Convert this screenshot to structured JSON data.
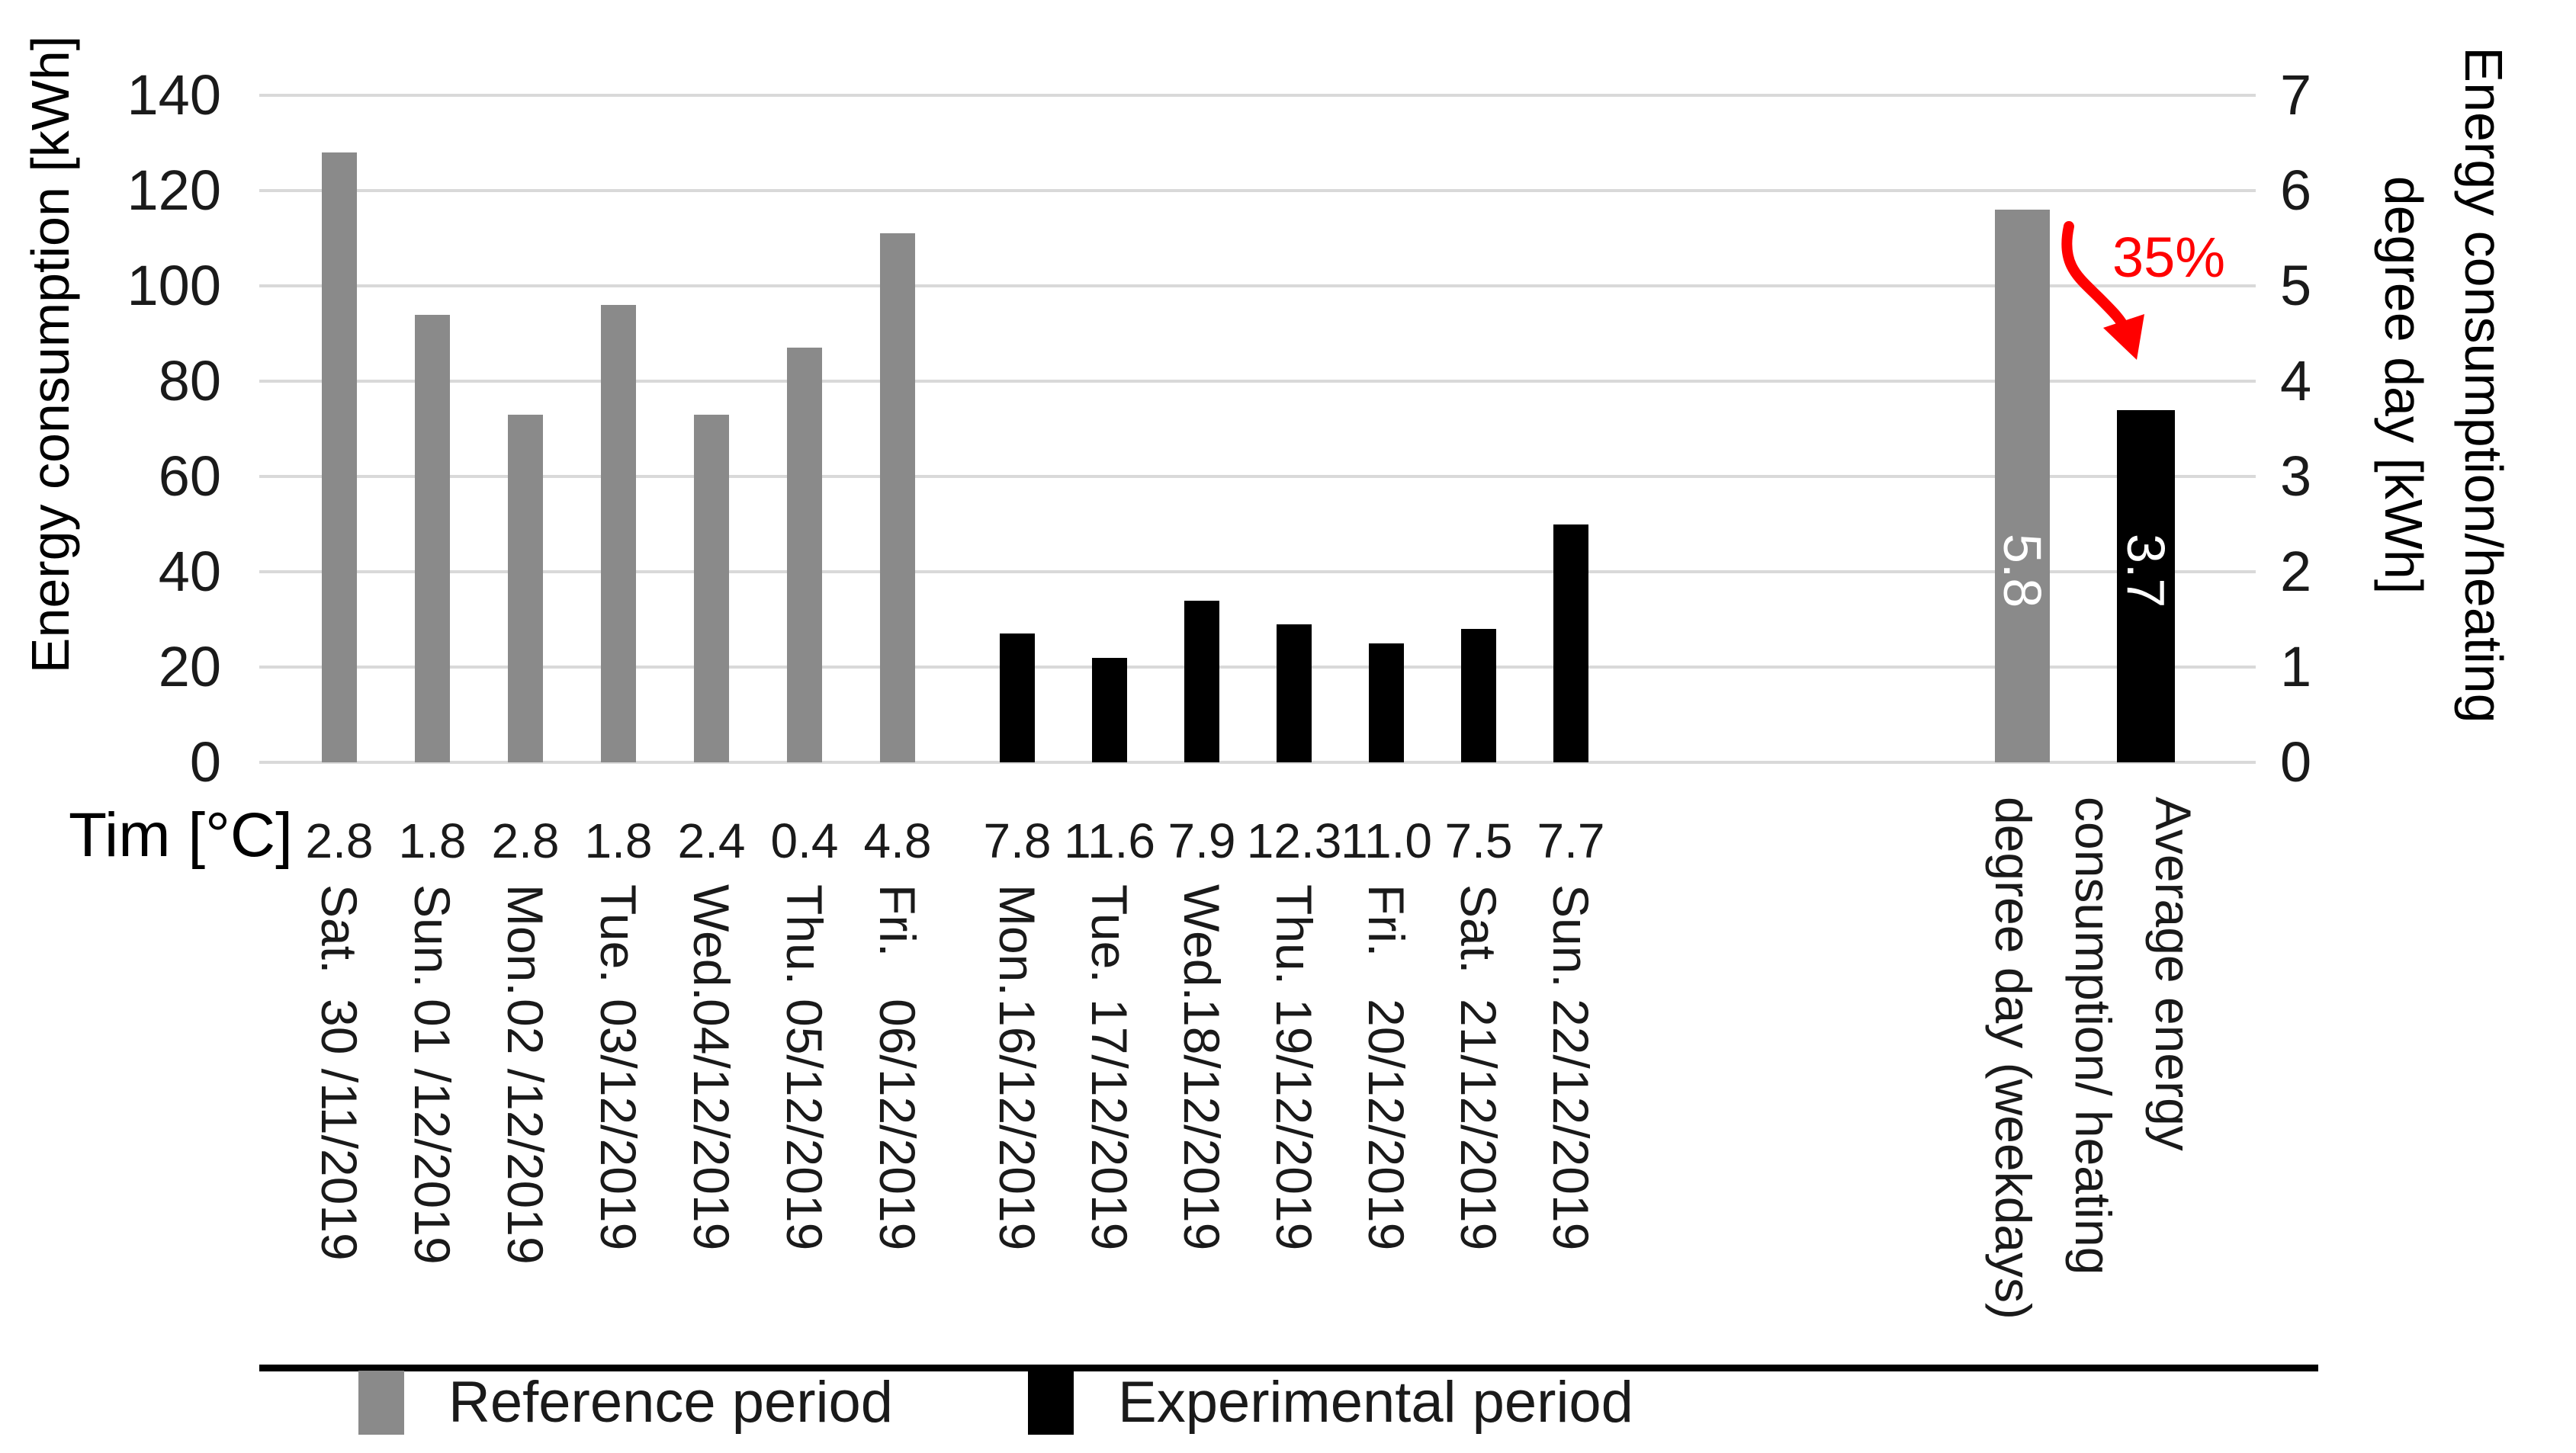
{
  "chart_data": {
    "type": "bar",
    "title": "",
    "left_axis": {
      "label": "Energy consumption [kWh]",
      "min": 0,
      "max": 140,
      "step": 20
    },
    "right_axis": {
      "label_line1": "Energy consumption/heating",
      "label_line2": "degree day [kWh]",
      "min": 0,
      "max": 7,
      "step": 1
    },
    "temp_row_label": "Tim [°C]",
    "grid": "horizontal-on",
    "series": [
      {
        "name": "Reference period",
        "color": "#8a8a8a",
        "days": [
          {
            "day": "Sat.",
            "date": "30 /11/2019",
            "temp": "2.8",
            "value": 128
          },
          {
            "day": "Sun.",
            "date": "01 /12/2019",
            "temp": "1.8",
            "value": 94
          },
          {
            "day": "Mon.",
            "date": "02 /12/2019",
            "temp": "2.8",
            "value": 73
          },
          {
            "day": "Tue.",
            "date": "03/12/2019",
            "temp": "1.8",
            "value": 96
          },
          {
            "day": "Wed.",
            "date": "04/12/2019",
            "temp": "2.4",
            "value": 73
          },
          {
            "day": "Thu.",
            "date": "05/12/2019",
            "temp": "0.4",
            "value": 87
          },
          {
            "day": "Fri.",
            "date": "06/12/2019",
            "temp": "4.8",
            "value": 111
          }
        ]
      },
      {
        "name": "Experimental period",
        "color": "#000000",
        "days": [
          {
            "day": "Mon.",
            "date": "16/12/2019",
            "temp": "7.8",
            "value": 27
          },
          {
            "day": "Tue.",
            "date": "17/12/2019",
            "temp": "11.6",
            "value": 22
          },
          {
            "day": "Wed.",
            "date": "18/12/2019",
            "temp": "7.9",
            "value": 34
          },
          {
            "day": "Thu.",
            "date": "19/12/2019",
            "temp": "12.3",
            "value": 29
          },
          {
            "day": "Fri.",
            "date": "20/12/2019",
            "temp": "11.0",
            "value": 25
          },
          {
            "day": "Sat.",
            "date": "21/12/2019",
            "temp": "7.5",
            "value": 28
          },
          {
            "day": "Sun.",
            "date": "22/12/2019",
            "temp": "7.7",
            "value": 50
          }
        ]
      }
    ],
    "summary": {
      "label_lines": [
        "Average energy",
        "consumption/ heating",
        "degree day (weekdays)"
      ],
      "bars": [
        {
          "name": "Reference period",
          "value": 5.8,
          "display": "5.8",
          "color": "#8a8a8a"
        },
        {
          "name": "Experimental period",
          "value": 3.7,
          "display": "3.7",
          "color": "#000000"
        }
      ]
    },
    "annotation": {
      "text": "35%",
      "color": "#ff0000"
    },
    "legend": [
      {
        "label": "Reference period",
        "color": "#8a8a8a"
      },
      {
        "label": "Experimental period",
        "color": "#000000"
      }
    ]
  }
}
